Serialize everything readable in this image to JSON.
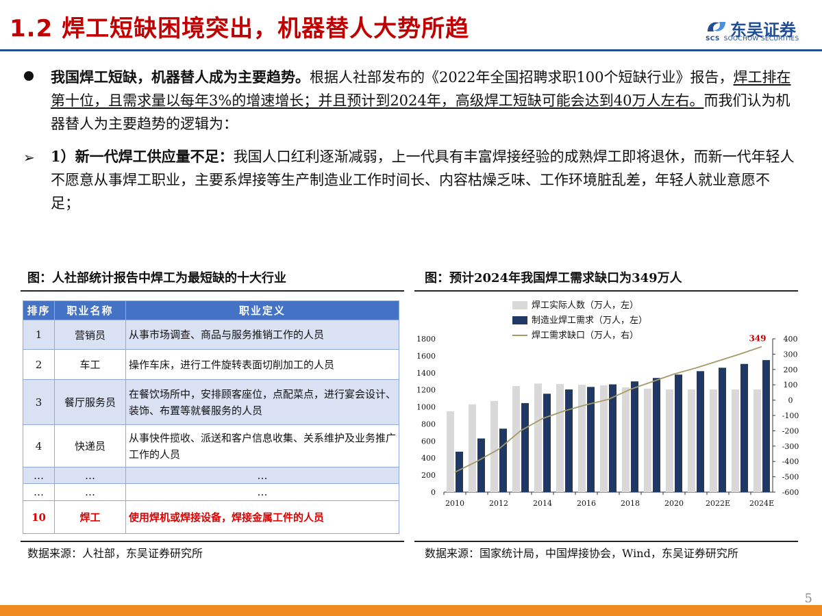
{
  "header": {
    "title": "1.2 焊工短缺困境突出，机器替人大势所趋",
    "logo_name": "东吴证券",
    "logo_abbr": "SCS",
    "logo_en": "SOOCHOW SECURITIES"
  },
  "para1": {
    "lead": "我国焊工短缺，机器替人成为主要趋势。",
    "text1": "根据人社部发布的《2022年全国招聘求职100个短缺行业》报告，",
    "underline": "焊工排在第十位，且需求量以每年3%的增速增长；并且预计到2024年，高级焊工短缺可能会达到40万人左右。",
    "text2": "而我们认为机器替人为主要趋势的逻辑为："
  },
  "para2": {
    "lead": "1）新一代焊工供应量不足：",
    "text": "我国人口红利逐渐减弱，上一代具有丰富焊接经验的成熟焊工即将退休，而新一代年轻人不愿意从事焊工职业，主要系焊接等生产制造业工作时间长、内容枯燥乏味、工作环境脏乱差，年轻人就业意愿不足；"
  },
  "left_figure": {
    "title": "图：人社部统计报告中焊工为最短缺的十大行业",
    "headers": [
      "排序",
      "职业名称",
      "职业定义"
    ],
    "rows": [
      {
        "rank": "1",
        "name": "营销员",
        "def": "从事市场调查、商品与服务推销工作的人员"
      },
      {
        "rank": "2",
        "name": "车工",
        "def": "操作车床，进行工件旋转表面切削加工的人员"
      },
      {
        "rank": "3",
        "name": "餐厅服务员",
        "def": "在餐饮场所中，安排顾客座位，点配菜点，进行宴会设计、装饰、布置等就餐服务的人员"
      },
      {
        "rank": "4",
        "name": "快递员",
        "def": "从事快件揽收、派送和客户信息收集、关系维护及业务推广工作的人员"
      },
      {
        "rank": "…",
        "name": "…",
        "def": "…"
      },
      {
        "rank": "…",
        "name": "…",
        "def": "…"
      },
      {
        "rank": "10",
        "name": "焊工",
        "def": "使用焊机或焊接设备，焊接金属工件的人员"
      }
    ],
    "source": "数据来源：人社部，东吴证券研究所"
  },
  "right_figure": {
    "title": "图：预计2024年我国焊工需求缺口为349万人",
    "source": "数据来源：国家统计局，中国焊接协会，Wind，东吴证券研究所"
  },
  "chart_data": {
    "type": "bar",
    "title": "图：预计2024年我国焊工需求缺口为349万人",
    "categories": [
      "2010",
      "2011",
      "2012",
      "2013",
      "2014",
      "2015",
      "2016",
      "2017",
      "2018",
      "2019",
      "2020",
      "2021",
      "2022E",
      "2023E",
      "2024E"
    ],
    "x_tick_labels": [
      "2010",
      "",
      "2012",
      "",
      "2014",
      "",
      "2016",
      "",
      "2018",
      "",
      "2020",
      "",
      "2022E",
      "",
      "2024E"
    ],
    "series": [
      {
        "name": "焊工实际人数（万人，左）",
        "type": "bar",
        "axis": "left",
        "color": "#d9d9d9",
        "values": [
          950,
          1030,
          1070,
          1245,
          1275,
          1270,
          1260,
          1255,
          1230,
          1215,
          1205,
          1205,
          1205,
          1205,
          1205
        ]
      },
      {
        "name": "制造业焊工需求（万人，左）",
        "type": "bar",
        "axis": "left",
        "color": "#1f3864",
        "values": [
          475,
          630,
          745,
          1045,
          1155,
          1205,
          1235,
          1265,
          1300,
          1340,
          1380,
          1420,
          1460,
          1505,
          1550
        ]
      },
      {
        "name": "焊工需求缺口（万人，右）",
        "type": "line",
        "axis": "right",
        "color": "#a39a66",
        "values": [
          -470,
          -400,
          -320,
          -200,
          -120,
          -70,
          -30,
          5,
          70,
          120,
          170,
          210,
          255,
          300,
          349
        ]
      }
    ],
    "annotation": "349",
    "ylim_left": [
      0,
      1800
    ],
    "yticks_left": [
      "0",
      "200",
      "400",
      "600",
      "800",
      "1000",
      "1200",
      "1400",
      "1600",
      "1800"
    ],
    "ylim_right": [
      -600,
      400
    ],
    "yticks_right": [
      "-600",
      "-500",
      "-400",
      "-300",
      "-200",
      "-100",
      "0",
      "100",
      "200",
      "300",
      "400"
    ],
    "legend": "top-left",
    "grid": false
  },
  "footer": {
    "page": "5"
  },
  "colors": {
    "title": "#c00000",
    "brand": "#1f4e96",
    "accent_bar": "#ee8a1f",
    "table_header": "#4472c4",
    "table_shade": "#d9e1f2"
  }
}
